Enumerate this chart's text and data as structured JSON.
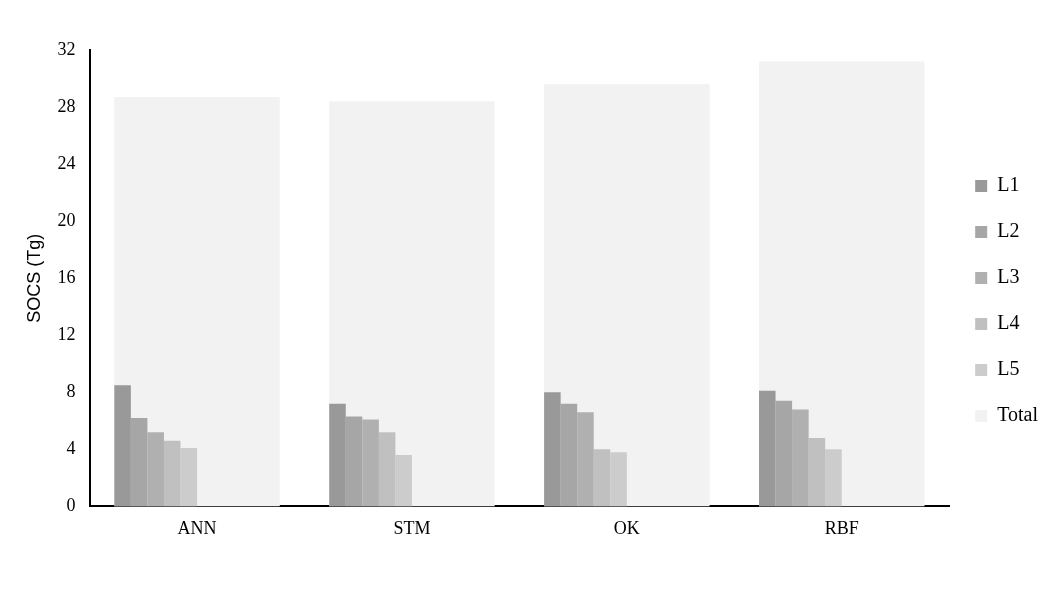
{
  "chart_data": {
    "type": "bar",
    "ylabel": "SOCS (Tg)",
    "categories": [
      "ANN",
      "STM",
      "OK",
      "RBF"
    ],
    "series": [
      {
        "name": "L1",
        "color": "#999999",
        "values": [
          8.5,
          7.2,
          8.0,
          8.1
        ]
      },
      {
        "name": "L2",
        "color": "#a6a6a6",
        "values": [
          6.2,
          6.3,
          7.2,
          7.4
        ]
      },
      {
        "name": "L3",
        "color": "#b0b0b0",
        "values": [
          5.2,
          6.1,
          6.6,
          6.8
        ]
      },
      {
        "name": "L4",
        "color": "#c0c0c0",
        "values": [
          4.6,
          5.2,
          4.0,
          4.8
        ]
      },
      {
        "name": "L5",
        "color": "#cccccc",
        "values": [
          4.1,
          3.6,
          3.8,
          4.0
        ]
      },
      {
        "name": "Total",
        "color": "#f2f2f2",
        "values": [
          28.7,
          28.4,
          29.6,
          31.2
        ]
      }
    ],
    "ylim": [
      0,
      32
    ],
    "yticks": [
      0,
      4,
      8,
      12,
      16,
      20,
      24,
      28,
      32
    ],
    "grid": false,
    "legend": "right"
  }
}
